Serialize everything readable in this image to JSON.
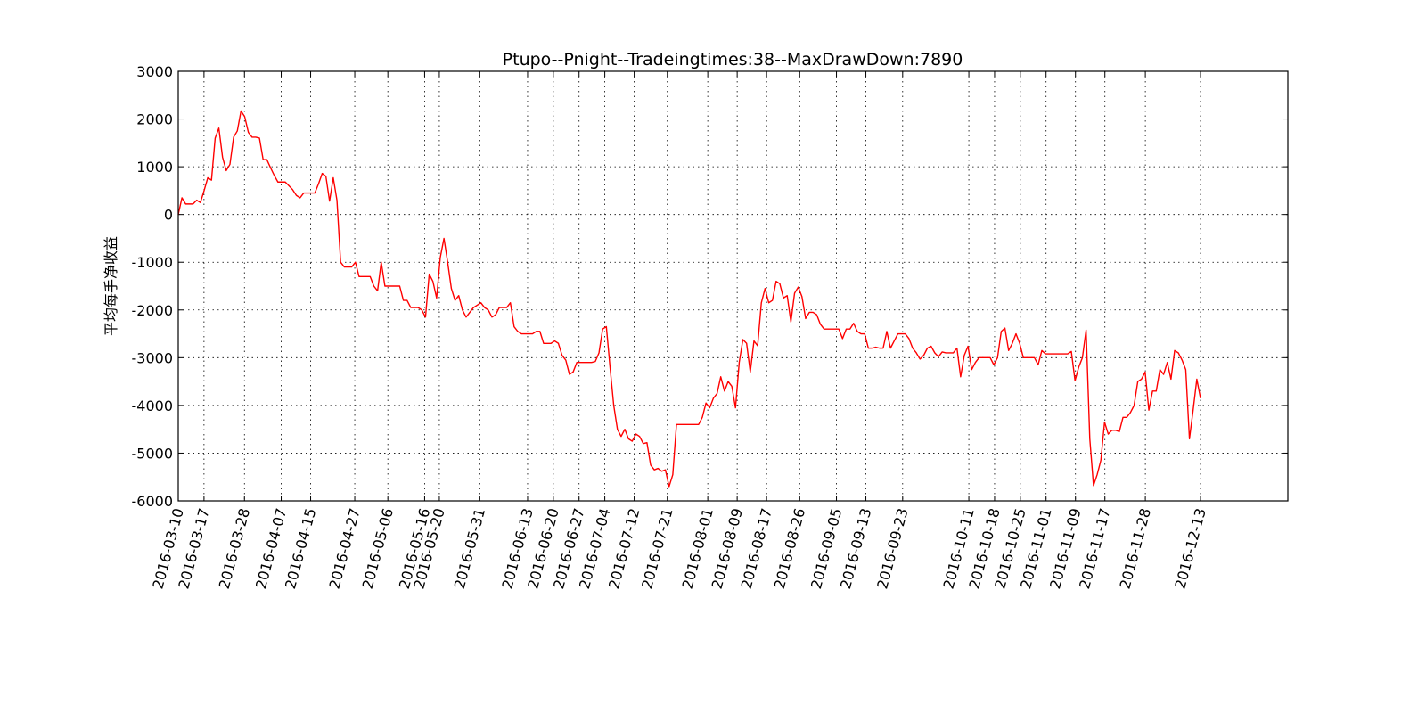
{
  "chart_data": {
    "type": "line",
    "title": "Ptupo--Pnight--Tradeingtimes:38--MaxDrawDown:7890",
    "ylabel": "平均每手净收益",
    "xlabel": "",
    "ylim": [
      -6000,
      3000
    ],
    "yticks": [
      -6000,
      -5000,
      -4000,
      -3000,
      -2000,
      -1000,
      0,
      1000,
      2000,
      3000
    ],
    "xticks": [
      "2016-03-10",
      "2016-03-17",
      "2016-03-28",
      "2016-04-07",
      "2016-04-15",
      "2016-04-27",
      "2016-05-06",
      "2016-05-16",
      "2016-05-20",
      "2016-05-31",
      "2016-06-13",
      "2016-06-20",
      "2016-06-27",
      "2016-07-04",
      "2016-07-12",
      "2016-07-21",
      "2016-08-01",
      "2016-08-09",
      "2016-08-17",
      "2016-08-26",
      "2016-09-05",
      "2016-09-13",
      "2016-09-23",
      "2016-10-11",
      "2016-10-18",
      "2016-10-25",
      "2016-11-01",
      "2016-11-09",
      "2016-11-17",
      "2016-11-28",
      "2016-12-13"
    ],
    "grid": true,
    "series": [
      {
        "color": "#ff0000",
        "values": [
          0,
          350,
          220,
          220,
          220,
          300,
          250,
          500,
          770,
          720,
          1600,
          1810,
          1200,
          920,
          1050,
          1620,
          1750,
          2170,
          2050,
          1720,
          1620,
          1620,
          1600,
          1150,
          1150,
          980,
          820,
          680,
          680,
          680,
          600,
          520,
          400,
          350,
          450,
          450,
          450,
          450,
          640,
          860,
          800,
          280,
          770,
          300,
          -1000,
          -1100,
          -1100,
          -1100,
          -1000,
          -1300,
          -1300,
          -1300,
          -1300,
          -1500,
          -1600,
          -1000,
          -1500,
          -1500,
          -1500,
          -1500,
          -1500,
          -1800,
          -1800,
          -1950,
          -1950,
          -1950,
          -2000,
          -2150,
          -1250,
          -1400,
          -1750,
          -900,
          -500,
          -1000,
          -1550,
          -1800,
          -1700,
          -2000,
          -2150,
          -2050,
          -1950,
          -1900,
          -1850,
          -1950,
          -2000,
          -2150,
          -2100,
          -1950,
          -1950,
          -1950,
          -1850,
          -2350,
          -2450,
          -2500,
          -2500,
          -2500,
          -2500,
          -2450,
          -2450,
          -2700,
          -2700,
          -2700,
          -2650,
          -2700,
          -2950,
          -3050,
          -3350,
          -3300,
          -3100,
          -3100,
          -3100,
          -3100,
          -3100,
          -3080,
          -2900,
          -2400,
          -2350,
          -3200,
          -4000,
          -4500,
          -4650,
          -4500,
          -4700,
          -4750,
          -4600,
          -4650,
          -4800,
          -4780,
          -5250,
          -5350,
          -5320,
          -5380,
          -5350,
          -5700,
          -5450,
          -4400,
          -4400,
          -4400,
          -4400,
          -4400,
          -4400,
          -4400,
          -4250,
          -3950,
          -4050,
          -3850,
          -3750,
          -3400,
          -3700,
          -3500,
          -3600,
          -4050,
          -3100,
          -2620,
          -2700,
          -3300,
          -2650,
          -2750,
          -1850,
          -1550,
          -1850,
          -1800,
          -1400,
          -1450,
          -1750,
          -1700,
          -2250,
          -1650,
          -1520,
          -1720,
          -2180,
          -2050,
          -2050,
          -2100,
          -2300,
          -2400,
          -2400,
          -2400,
          -2400,
          -2400,
          -2600,
          -2400,
          -2400,
          -2280,
          -2450,
          -2500,
          -2500,
          -2800,
          -2800,
          -2780,
          -2800,
          -2800,
          -2450,
          -2800,
          -2650,
          -2500,
          -2500,
          -2500,
          -2600,
          -2800,
          -2900,
          -3030,
          -2950,
          -2800,
          -2760,
          -2900,
          -2980,
          -2880,
          -2900,
          -2900,
          -2900,
          -2800,
          -3400,
          -2950,
          -2760,
          -3250,
          -3100,
          -3000,
          -3000,
          -3000,
          -3000,
          -3150,
          -3000,
          -2450,
          -2380,
          -2850,
          -2700,
          -2500,
          -2700,
          -3000,
          -3000,
          -3000,
          -3000,
          -3150,
          -2850,
          -2920,
          -2920,
          -2920,
          -2920,
          -2920,
          -2920,
          -2920,
          -2870,
          -3480,
          -3200,
          -3000,
          -2420,
          -4700,
          -5680,
          -5450,
          -5150,
          -4350,
          -4600,
          -4520,
          -4520,
          -4550,
          -4250,
          -4250,
          -4150,
          -4000,
          -3500,
          -3450,
          -3300,
          -4100,
          -3700,
          -3700,
          -3250,
          -3350,
          -3100,
          -3450,
          -2850,
          -2900,
          -3050,
          -3250,
          -4700,
          -4100,
          -3450,
          -3850
        ]
      }
    ]
  }
}
